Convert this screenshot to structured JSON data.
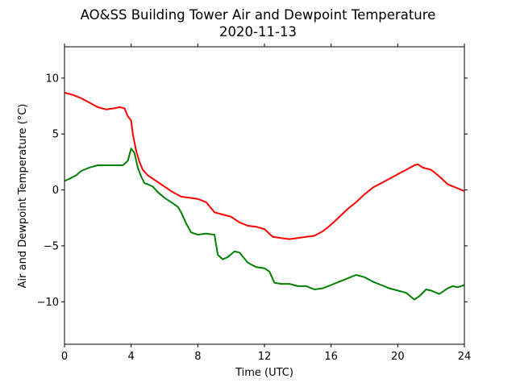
{
  "chart_data": {
    "type": "line",
    "title": "AO&SS Building Tower Air and Dewpoint Temperature",
    "subtitle": "2020-11-13",
    "xlabel": "Time (UTC)",
    "ylabel": "Air and Dewpoint Temperature (°C)",
    "xlim": [
      0,
      24
    ],
    "ylim": [
      -13.8,
      12.8
    ],
    "xticks": [
      0,
      4,
      8,
      12,
      16,
      20,
      24
    ],
    "yticks": [
      -10,
      -5,
      0,
      5,
      10
    ],
    "grid": false,
    "legend": "none",
    "series": [
      {
        "color": "#ff0000",
        "x": [
          0,
          0.5,
          1,
          1.5,
          2,
          2.5,
          3,
          3.3,
          3.6,
          3.8,
          4.0,
          4.1,
          4.3,
          4.5,
          4.7,
          5.0,
          5.5,
          6,
          6.5,
          7,
          7.5,
          8,
          8.5,
          9,
          9.5,
          10,
          10.5,
          11,
          11.5,
          12,
          12.5,
          13,
          13.5,
          14,
          14.5,
          15,
          15.5,
          16,
          16.5,
          17,
          17.5,
          18,
          18.5,
          19,
          19.5,
          20,
          20.5,
          21,
          21.2,
          21.5,
          22,
          22.5,
          23,
          23.5,
          24
        ],
        "y": [
          8.7,
          8.5,
          8.2,
          7.8,
          7.4,
          7.2,
          7.3,
          7.4,
          7.3,
          6.6,
          6.2,
          5.0,
          3.5,
          2.5,
          1.8,
          1.3,
          0.8,
          0.3,
          -0.2,
          -0.6,
          -0.7,
          -0.8,
          -1.1,
          -2.0,
          -2.2,
          -2.4,
          -2.9,
          -3.2,
          -3.3,
          -3.5,
          -4.2,
          -4.3,
          -4.4,
          -4.3,
          -4.2,
          -4.1,
          -3.7,
          -3.1,
          -2.4,
          -1.7,
          -1.1,
          -0.4,
          0.2,
          0.6,
          1.0,
          1.4,
          1.8,
          2.2,
          2.3,
          2.0,
          1.8,
          1.2,
          0.5,
          0.2,
          -0.1
        ]
      },
      {
        "color": "#008000",
        "x": [
          0,
          0.3,
          0.7,
          1,
          1.5,
          2,
          2.5,
          3,
          3.5,
          3.8,
          4.0,
          4.2,
          4.4,
          4.6,
          4.8,
          5.0,
          5.3,
          5.6,
          6.0,
          6.5,
          6.8,
          7.0,
          7.3,
          7.6,
          8.0,
          8.5,
          9.0,
          9.2,
          9.5,
          9.8,
          10.2,
          10.5,
          11,
          11.5,
          12,
          12.3,
          12.6,
          13,
          13.5,
          14,
          14.5,
          15,
          15.5,
          16,
          16.5,
          17,
          17.5,
          18,
          18.5,
          19,
          19.5,
          20,
          20.5,
          21,
          21.3,
          21.7,
          22,
          22.5,
          23,
          23.3,
          23.6,
          24
        ],
        "y": [
          0.8,
          1.0,
          1.3,
          1.7,
          2.0,
          2.2,
          2.2,
          2.2,
          2.2,
          2.6,
          3.7,
          3.3,
          2.0,
          1.2,
          0.6,
          0.5,
          0.3,
          -0.2,
          -0.7,
          -1.2,
          -1.5,
          -2.0,
          -3.0,
          -3.8,
          -4.0,
          -3.9,
          -4.0,
          -5.8,
          -6.2,
          -6.0,
          -5.5,
          -5.6,
          -6.5,
          -6.9,
          -7.0,
          -7.3,
          -8.3,
          -8.4,
          -8.4,
          -8.6,
          -8.6,
          -8.9,
          -8.8,
          -8.5,
          -8.2,
          -7.9,
          -7.6,
          -7.8,
          -8.2,
          -8.5,
          -8.8,
          -9.0,
          -9.2,
          -9.8,
          -9.5,
          -8.9,
          -9.0,
          -9.3,
          -8.8,
          -8.6,
          -8.7,
          -8.5
        ]
      }
    ]
  }
}
